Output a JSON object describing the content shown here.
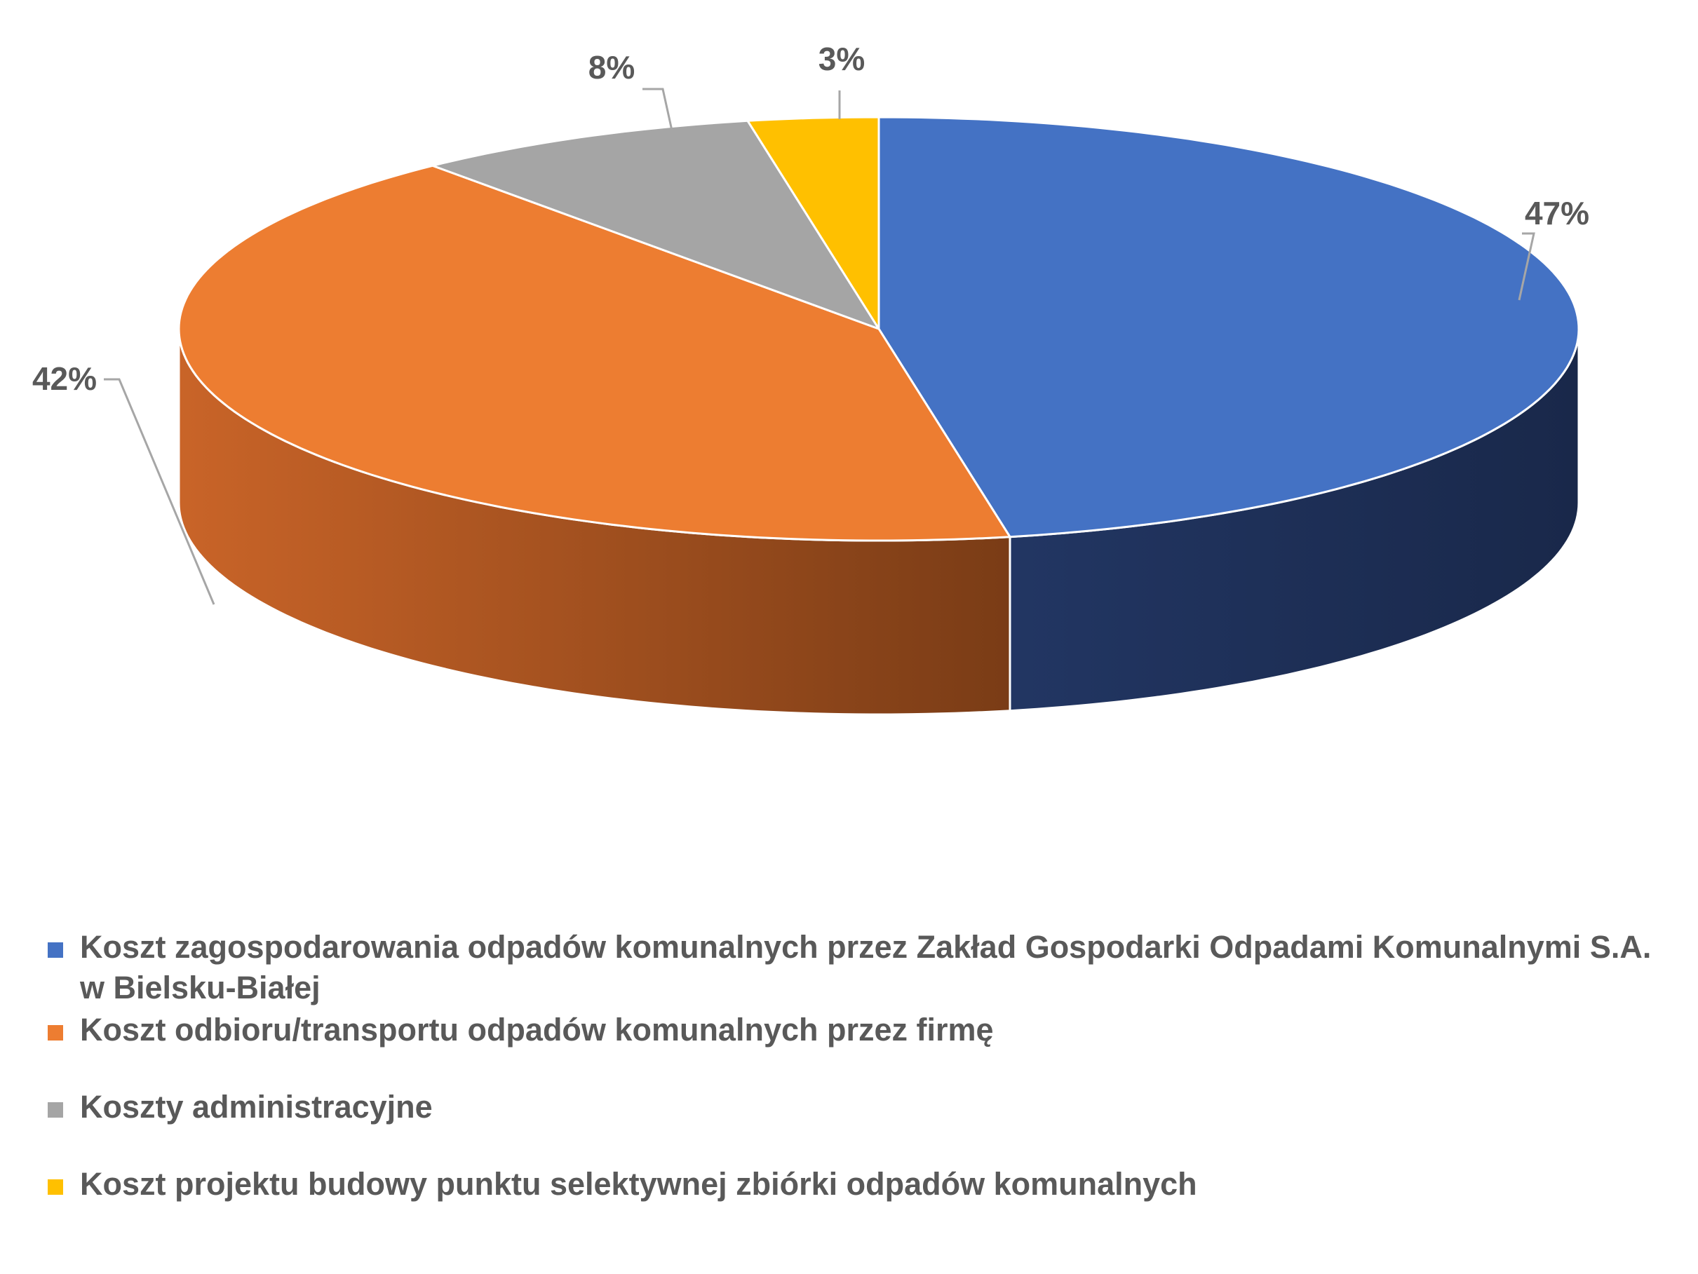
{
  "chart_data": {
    "type": "pie",
    "title": "",
    "categories": [
      "Koszt zagospodarowania odpadów komunalnych przez Zakład Gospodarki Odpadami Komunalnymi S.A. w Bielsku-Białej",
      "Koszt odbioru/transportu odpadów komunalnych przez firmę",
      "Koszty administracyjne",
      "Koszt projektu budowy punktu selektywnej zbiórki odpadów komunalnych"
    ],
    "values": [
      47,
      42,
      8,
      3
    ],
    "labels": [
      "47%",
      "42%",
      "8%",
      "3%"
    ],
    "colors": [
      "#4472c4",
      "#ed7d31",
      "#a5a5a5",
      "#ffc000"
    ],
    "side_colors": [
      "#1f2f57",
      "#9a4f1f",
      "#7a7a7a",
      "#b38600"
    ],
    "legend_position": "bottom",
    "style": "3d-pie"
  }
}
